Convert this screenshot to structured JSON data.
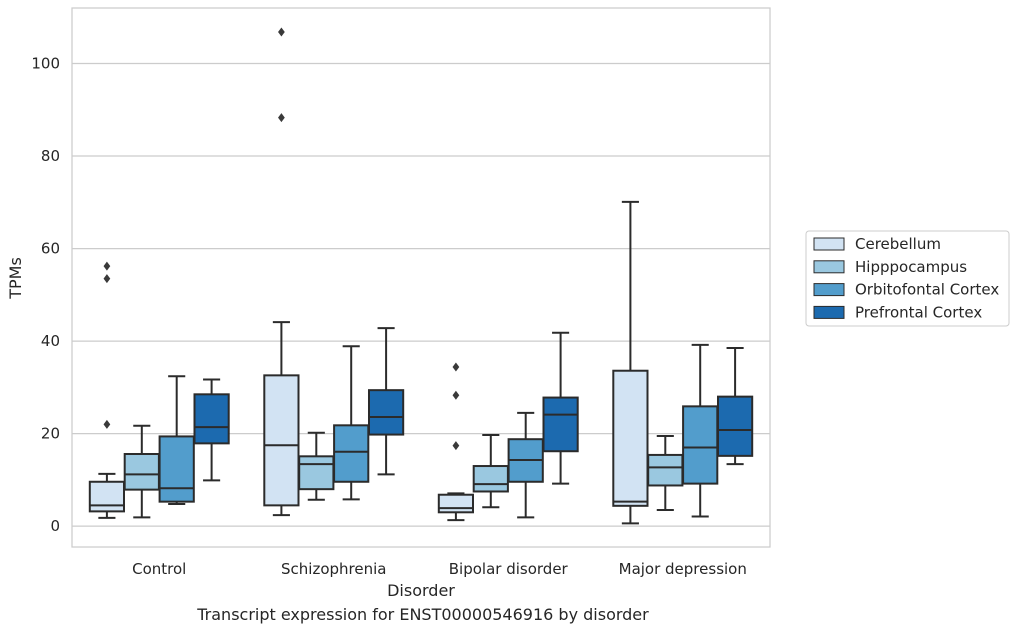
{
  "chart_data": {
    "type": "box",
    "title": "",
    "xlabel": "Disorder",
    "ylabel": "TPMs",
    "caption": "Transcript expression for ENST00000546916 by disorder",
    "categories": [
      "Control",
      "Schizophrenia",
      "Bipolar disorder",
      "Major depression"
    ],
    "yticks": [
      0,
      20,
      40,
      60,
      80,
      100
    ],
    "ylim": [
      -4.5,
      112
    ],
    "grid": "horizontal",
    "legend_position": "right",
    "series": [
      {
        "name": "Cerebellum",
        "color": "#d2e3f3",
        "boxes": [
          {
            "whislo": 1.8,
            "q1": 3.2,
            "med": 4.5,
            "q3": 9.6,
            "whishi": 11.3,
            "fliers": [
              22.0,
              53.5,
              56.2
            ]
          },
          {
            "whislo": 2.4,
            "q1": 4.5,
            "med": 17.5,
            "q3": 32.6,
            "whishi": 44.1,
            "fliers": [
              88.3,
              106.8
            ]
          },
          {
            "whislo": 1.3,
            "q1": 3.0,
            "med": 3.9,
            "q3": 6.8,
            "whishi": 7.1,
            "fliers": [
              17.4,
              28.3,
              34.4
            ]
          },
          {
            "whislo": 0.6,
            "q1": 4.4,
            "med": 5.3,
            "q3": 33.6,
            "whishi": 70.1,
            "fliers": []
          }
        ]
      },
      {
        "name": "Hipppocampus",
        "color": "#9ac8e0",
        "boxes": [
          {
            "whislo": 1.9,
            "q1": 7.9,
            "med": 11.2,
            "q3": 15.6,
            "whishi": 21.7,
            "fliers": []
          },
          {
            "whislo": 5.7,
            "q1": 8.0,
            "med": 13.4,
            "q3": 15.1,
            "whishi": 20.2,
            "fliers": []
          },
          {
            "whislo": 4.1,
            "q1": 7.5,
            "med": 9.1,
            "q3": 13.0,
            "whishi": 19.7,
            "fliers": []
          },
          {
            "whislo": 3.5,
            "q1": 8.8,
            "med": 12.7,
            "q3": 15.4,
            "whishi": 19.5,
            "fliers": []
          }
        ]
      },
      {
        "name": "Orbitofontal Cortex",
        "color": "#529dcc",
        "boxes": [
          {
            "whislo": 4.8,
            "q1": 5.3,
            "med": 8.2,
            "q3": 19.4,
            "whishi": 32.4,
            "fliers": []
          },
          {
            "whislo": 5.8,
            "q1": 9.6,
            "med": 16.1,
            "q3": 21.8,
            "whishi": 38.9,
            "fliers": []
          },
          {
            "whislo": 1.9,
            "q1": 9.6,
            "med": 14.3,
            "q3": 18.8,
            "whishi": 24.5,
            "fliers": []
          },
          {
            "whislo": 2.1,
            "q1": 9.2,
            "med": 17.0,
            "q3": 25.9,
            "whishi": 39.2,
            "fliers": []
          }
        ]
      },
      {
        "name": "Prefrontal Cortex",
        "color": "#1c6aaf",
        "boxes": [
          {
            "whislo": 9.9,
            "q1": 17.9,
            "med": 21.4,
            "q3": 28.5,
            "whishi": 31.7,
            "fliers": []
          },
          {
            "whislo": 11.2,
            "q1": 19.8,
            "med": 23.6,
            "q3": 29.4,
            "whishi": 42.8,
            "fliers": []
          },
          {
            "whislo": 9.2,
            "q1": 16.2,
            "med": 24.1,
            "q3": 27.8,
            "whishi": 41.8,
            "fliers": []
          },
          {
            "whislo": 13.4,
            "q1": 15.2,
            "med": 20.8,
            "q3": 28.0,
            "whishi": 38.5,
            "fliers": []
          }
        ]
      }
    ]
  }
}
